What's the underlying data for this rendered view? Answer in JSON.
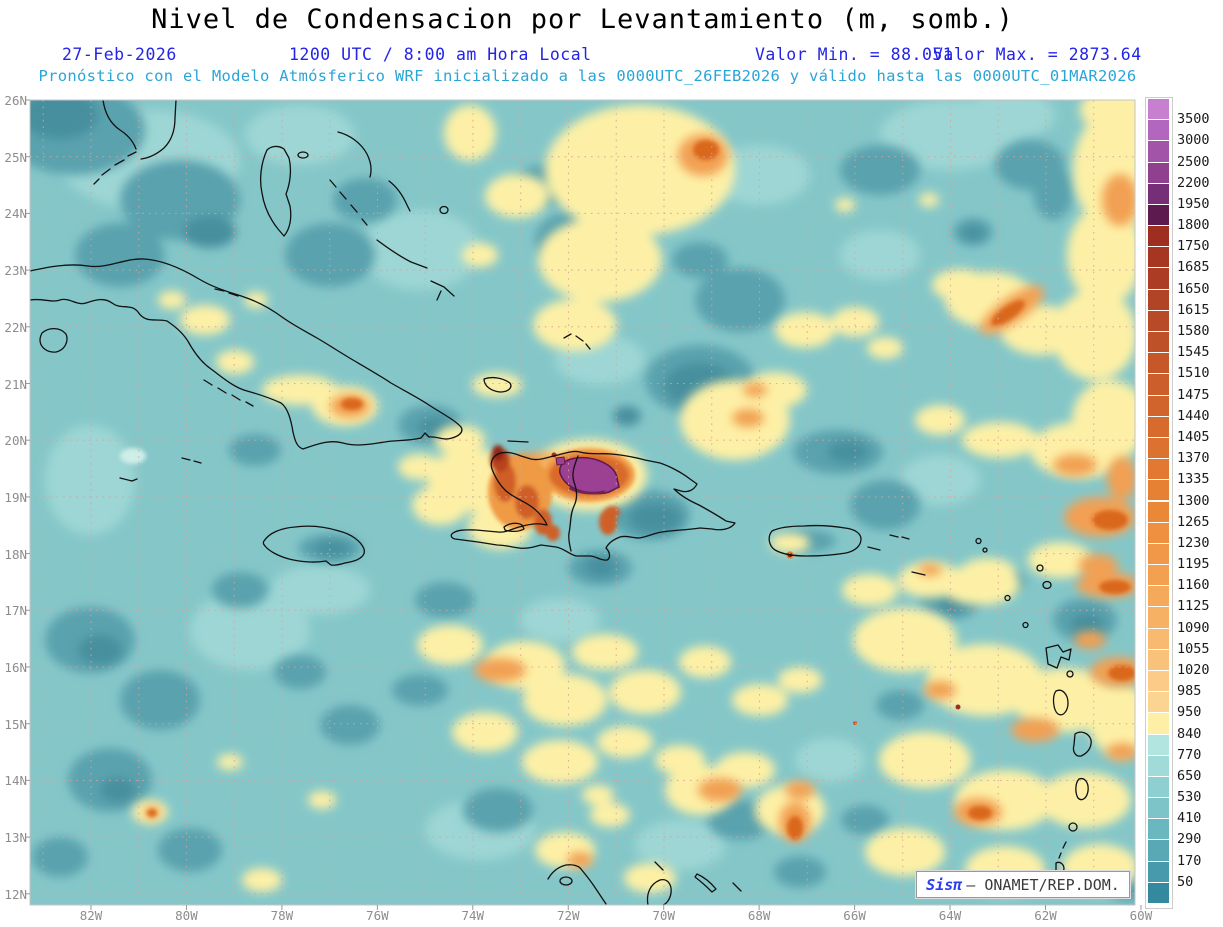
{
  "header": {
    "title": "Nivel de Condensacion por Levantamiento (m, somb.)",
    "date": "27-Feb-2026",
    "time_local": "1200 UTC / 8:00 am Hora Local",
    "valor_min": "Valor Min. = 88.051",
    "valor_max": "Valor Max. = 2873.64",
    "forecast": "Pronóstico con el Modelo Atmósferico WRF inicializado a las 0000UTC_26FEB2026 y válido hasta las  0000UTC_01MAR2026"
  },
  "axes": {
    "lat_labels": [
      "26N",
      "25N",
      "24N",
      "23N",
      "22N",
      "21N",
      "20N",
      "19N",
      "18N",
      "17N",
      "16N",
      "15N",
      "14N",
      "13N",
      "12N"
    ],
    "lon_labels": [
      "82W",
      "80W",
      "78W",
      "76W",
      "74W",
      "72W",
      "70W",
      "68W",
      "66W",
      "64W",
      "62W",
      "60W"
    ]
  },
  "colorbar": {
    "values": [
      "3500",
      "3000",
      "2500",
      "2200",
      "1950",
      "1800",
      "1750",
      "1685",
      "1650",
      "1615",
      "1580",
      "1545",
      "1510",
      "1475",
      "1440",
      "1405",
      "1370",
      "1335",
      "1300",
      "1265",
      "1230",
      "1195",
      "1160",
      "1125",
      "1090",
      "1055",
      "1020",
      "985",
      "950",
      "840",
      "770",
      "650",
      "530",
      "410",
      "290",
      "170",
      "50"
    ],
    "colors": [
      "#c77fd0",
      "#b366bd",
      "#a254a8",
      "#8f4190",
      "#762f77",
      "#5c1a4e",
      "#9e2e20",
      "#a63622",
      "#ac3d24",
      "#b24426",
      "#b84a27",
      "#bf5128",
      "#c55729",
      "#cb5e2a",
      "#d1642c",
      "#d76b2d",
      "#dc722f",
      "#e27831",
      "#e68033",
      "#ea8838",
      "#ee9040",
      "#f19848",
      "#f3a151",
      "#f5a95b",
      "#f7b165",
      "#f8ba70",
      "#f9c27b",
      "#fbcb87",
      "#fcd492",
      "#fdf0a6",
      "#b2e4e0",
      "#a0dbd9",
      "#8ed0d1",
      "#7cc4c8",
      "#6ab7bf",
      "#58a9b5",
      "#479aab",
      "#35899e"
    ]
  },
  "watermark": {
    "brand": "Sisπ",
    "org": "– ONAMET/REP.DOM."
  },
  "colors": {
    "header_blue": "#2424e8",
    "header_cyan": "#2aa5d6",
    "axis_gray": "#8d8d8d",
    "grid_dots": "#d8a49c",
    "coastline": "#111111",
    "sea_base": "#85c7c9",
    "max_purple": "#9c4093",
    "watermark_blue": "#2a3cf0"
  },
  "chart_data": {
    "type": "heatmap",
    "title": "Nivel de Condensacion por Levantamiento (m, somb.)",
    "units": "m",
    "value_min": 88.051,
    "value_max": 2873.64,
    "lon_range_deg_w": [
      83.3,
      59.9
    ],
    "lat_range_deg_n": [
      11.9,
      26.0
    ],
    "levels": [
      50,
      170,
      290,
      410,
      530,
      650,
      770,
      840,
      950,
      985,
      1020,
      1055,
      1090,
      1125,
      1160,
      1195,
      1230,
      1265,
      1300,
      1335,
      1370,
      1405,
      1440,
      1475,
      1510,
      1545,
      1580,
      1615,
      1650,
      1685,
      1750,
      1800,
      1950,
      2200,
      2500,
      3000,
      3500
    ],
    "palette_low_to_high": [
      "#35899e",
      "#479aab",
      "#58a9b5",
      "#6ab7bf",
      "#7cc4c8",
      "#8ed0d1",
      "#a0dbd9",
      "#b2e4e0",
      "#fdf0a6",
      "#fcd492",
      "#fbcb87",
      "#f9c27b",
      "#f8ba70",
      "#f7b165",
      "#f5a95b",
      "#f3a151",
      "#f19848",
      "#ee9040",
      "#ea8838",
      "#e68033",
      "#e27831",
      "#dc722f",
      "#d76b2d",
      "#d1642c",
      "#cb5e2a",
      "#c55729",
      "#bf5128",
      "#b84a27",
      "#b24426",
      "#ac3d24",
      "#a63622",
      "#9e2e20",
      "#5c1a4e",
      "#762f77",
      "#8f4190",
      "#a254a8",
      "#b366bd",
      "#c77fd0"
    ],
    "legend_position": "right",
    "grid": "dotted 1-degree",
    "max_location_note": "purple maximum over north-central Hispaniola"
  }
}
